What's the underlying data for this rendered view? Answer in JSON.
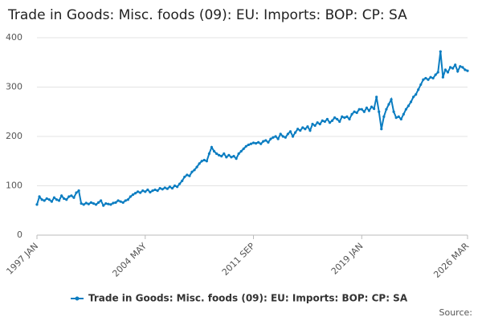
{
  "chart_data": {
    "type": "line",
    "title": "Trade in Goods: Misc. foods (09): EU: Imports: BOP: CP: SA",
    "source": "Source:",
    "categories": [
      "1997 JAN",
      null,
      null,
      null,
      null,
      null,
      null,
      null,
      null,
      null,
      null,
      null,
      null,
      null,
      null,
      null,
      null,
      null,
      null,
      null,
      null,
      null,
      null,
      null,
      null,
      null,
      null,
      null,
      null,
      null,
      null,
      null,
      null,
      null,
      null,
      null,
      null,
      null,
      null,
      null,
      null,
      null,
      null,
      null,
      "2004 MAY",
      null,
      null,
      null,
      null,
      null,
      null,
      null,
      null,
      null,
      null,
      null,
      null,
      null,
      null,
      null,
      null,
      null,
      null,
      null,
      null,
      null,
      null,
      null,
      null,
      null,
      null,
      null,
      null,
      null,
      null,
      null,
      null,
      null,
      null,
      null,
      null,
      null,
      null,
      null,
      null,
      null,
      null,
      null,
      "2011 SEP",
      null,
      null,
      null,
      null,
      null,
      null,
      null,
      null,
      null,
      null,
      null,
      null,
      null,
      null,
      null,
      null,
      null,
      null,
      null,
      null,
      null,
      null,
      null,
      null,
      null,
      null,
      null,
      null,
      null,
      null,
      null,
      null,
      null,
      null,
      null,
      null,
      null,
      null,
      null,
      null,
      null,
      null,
      null,
      "2019 JAN",
      null,
      null,
      null,
      null,
      null,
      null,
      null,
      null,
      null,
      null,
      null,
      null,
      null,
      null,
      null,
      null,
      null,
      null,
      null,
      null,
      null,
      null,
      null,
      null,
      null,
      null,
      null,
      null,
      null,
      null,
      null,
      null,
      null,
      null,
      null,
      null,
      null,
      null,
      null,
      null,
      null,
      null,
      "2026 MAR"
    ],
    "series": [
      {
        "name": "Trade in Goods: Misc. foods (09): EU: Imports: BOP: CP: SA",
        "color": "#0b7dc1",
        "values": [
          62,
          78,
          72,
          70,
          74,
          72,
          68,
          76,
          72,
          70,
          80,
          74,
          72,
          78,
          80,
          76,
          86,
          90,
          64,
          62,
          65,
          63,
          66,
          64,
          62,
          66,
          70,
          60,
          64,
          63,
          62,
          65,
          66,
          70,
          68,
          66,
          70,
          72,
          78,
          82,
          85,
          88,
          86,
          90,
          88,
          92,
          87,
          90,
          92,
          90,
          95,
          93,
          96,
          94,
          98,
          95,
          100,
          98,
          104,
          110,
          118,
          122,
          120,
          128,
          132,
          138,
          145,
          150,
          152,
          150,
          165,
          178,
          170,
          165,
          162,
          160,
          165,
          158,
          162,
          158,
          160,
          155,
          165,
          170,
          175,
          180,
          183,
          185,
          187,
          186,
          188,
          185,
          190,
          192,
          188,
          195,
          198,
          200,
          195,
          205,
          200,
          198,
          205,
          210,
          200,
          208,
          215,
          212,
          218,
          215,
          220,
          212,
          225,
          222,
          228,
          225,
          232,
          230,
          235,
          228,
          232,
          238,
          235,
          230,
          240,
          238,
          240,
          235,
          245,
          250,
          248,
          255,
          255,
          250,
          258,
          252,
          260,
          256,
          280,
          250,
          215,
          240,
          255,
          265,
          275,
          250,
          238,
          240,
          235,
          245,
          255,
          262,
          270,
          280,
          285,
          295,
          305,
          315,
          318,
          315,
          320,
          318,
          325,
          330,
          372,
          320,
          335,
          330,
          340,
          338,
          345,
          332,
          342,
          340,
          335,
          333
        ]
      }
    ],
    "ylim": [
      0,
      400
    ],
    "yticks": [
      0,
      100,
      200,
      300,
      400
    ],
    "grid": true
  }
}
